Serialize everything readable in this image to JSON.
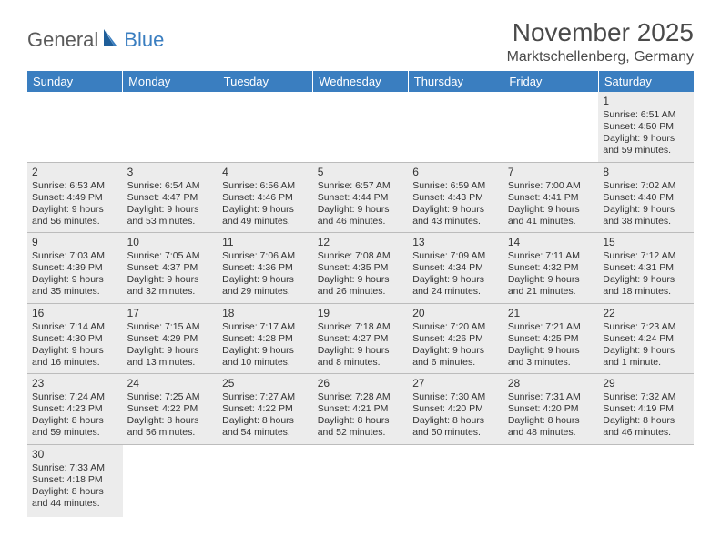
{
  "logo": {
    "text1": "General",
    "text2": "Blue"
  },
  "title": "November 2025",
  "location": "Marktschellenberg, Germany",
  "colors": {
    "header_bg": "#3a7ec0",
    "header_fg": "#ffffff",
    "cell_filled_bg": "#ececec",
    "border": "#bcbcbc",
    "text": "#333333"
  },
  "typography": {
    "title_fontsize": 28,
    "location_fontsize": 16,
    "header_fontsize": 13,
    "cell_fontsize": 10.5
  },
  "weekdays": [
    "Sunday",
    "Monday",
    "Tuesday",
    "Wednesday",
    "Thursday",
    "Friday",
    "Saturday"
  ],
  "weeks": [
    [
      null,
      null,
      null,
      null,
      null,
      null,
      {
        "n": "1",
        "sr": "Sunrise: 6:51 AM",
        "ss": "Sunset: 4:50 PM",
        "d1": "Daylight: 9 hours",
        "d2": "and 59 minutes."
      }
    ],
    [
      {
        "n": "2",
        "sr": "Sunrise: 6:53 AM",
        "ss": "Sunset: 4:49 PM",
        "d1": "Daylight: 9 hours",
        "d2": "and 56 minutes."
      },
      {
        "n": "3",
        "sr": "Sunrise: 6:54 AM",
        "ss": "Sunset: 4:47 PM",
        "d1": "Daylight: 9 hours",
        "d2": "and 53 minutes."
      },
      {
        "n": "4",
        "sr": "Sunrise: 6:56 AM",
        "ss": "Sunset: 4:46 PM",
        "d1": "Daylight: 9 hours",
        "d2": "and 49 minutes."
      },
      {
        "n": "5",
        "sr": "Sunrise: 6:57 AM",
        "ss": "Sunset: 4:44 PM",
        "d1": "Daylight: 9 hours",
        "d2": "and 46 minutes."
      },
      {
        "n": "6",
        "sr": "Sunrise: 6:59 AM",
        "ss": "Sunset: 4:43 PM",
        "d1": "Daylight: 9 hours",
        "d2": "and 43 minutes."
      },
      {
        "n": "7",
        "sr": "Sunrise: 7:00 AM",
        "ss": "Sunset: 4:41 PM",
        "d1": "Daylight: 9 hours",
        "d2": "and 41 minutes."
      },
      {
        "n": "8",
        "sr": "Sunrise: 7:02 AM",
        "ss": "Sunset: 4:40 PM",
        "d1": "Daylight: 9 hours",
        "d2": "and 38 minutes."
      }
    ],
    [
      {
        "n": "9",
        "sr": "Sunrise: 7:03 AM",
        "ss": "Sunset: 4:39 PM",
        "d1": "Daylight: 9 hours",
        "d2": "and 35 minutes."
      },
      {
        "n": "10",
        "sr": "Sunrise: 7:05 AM",
        "ss": "Sunset: 4:37 PM",
        "d1": "Daylight: 9 hours",
        "d2": "and 32 minutes."
      },
      {
        "n": "11",
        "sr": "Sunrise: 7:06 AM",
        "ss": "Sunset: 4:36 PM",
        "d1": "Daylight: 9 hours",
        "d2": "and 29 minutes."
      },
      {
        "n": "12",
        "sr": "Sunrise: 7:08 AM",
        "ss": "Sunset: 4:35 PM",
        "d1": "Daylight: 9 hours",
        "d2": "and 26 minutes."
      },
      {
        "n": "13",
        "sr": "Sunrise: 7:09 AM",
        "ss": "Sunset: 4:34 PM",
        "d1": "Daylight: 9 hours",
        "d2": "and 24 minutes."
      },
      {
        "n": "14",
        "sr": "Sunrise: 7:11 AM",
        "ss": "Sunset: 4:32 PM",
        "d1": "Daylight: 9 hours",
        "d2": "and 21 minutes."
      },
      {
        "n": "15",
        "sr": "Sunrise: 7:12 AM",
        "ss": "Sunset: 4:31 PM",
        "d1": "Daylight: 9 hours",
        "d2": "and 18 minutes."
      }
    ],
    [
      {
        "n": "16",
        "sr": "Sunrise: 7:14 AM",
        "ss": "Sunset: 4:30 PM",
        "d1": "Daylight: 9 hours",
        "d2": "and 16 minutes."
      },
      {
        "n": "17",
        "sr": "Sunrise: 7:15 AM",
        "ss": "Sunset: 4:29 PM",
        "d1": "Daylight: 9 hours",
        "d2": "and 13 minutes."
      },
      {
        "n": "18",
        "sr": "Sunrise: 7:17 AM",
        "ss": "Sunset: 4:28 PM",
        "d1": "Daylight: 9 hours",
        "d2": "and 10 minutes."
      },
      {
        "n": "19",
        "sr": "Sunrise: 7:18 AM",
        "ss": "Sunset: 4:27 PM",
        "d1": "Daylight: 9 hours",
        "d2": "and 8 minutes."
      },
      {
        "n": "20",
        "sr": "Sunrise: 7:20 AM",
        "ss": "Sunset: 4:26 PM",
        "d1": "Daylight: 9 hours",
        "d2": "and 6 minutes."
      },
      {
        "n": "21",
        "sr": "Sunrise: 7:21 AM",
        "ss": "Sunset: 4:25 PM",
        "d1": "Daylight: 9 hours",
        "d2": "and 3 minutes."
      },
      {
        "n": "22",
        "sr": "Sunrise: 7:23 AM",
        "ss": "Sunset: 4:24 PM",
        "d1": "Daylight: 9 hours",
        "d2": "and 1 minute."
      }
    ],
    [
      {
        "n": "23",
        "sr": "Sunrise: 7:24 AM",
        "ss": "Sunset: 4:23 PM",
        "d1": "Daylight: 8 hours",
        "d2": "and 59 minutes."
      },
      {
        "n": "24",
        "sr": "Sunrise: 7:25 AM",
        "ss": "Sunset: 4:22 PM",
        "d1": "Daylight: 8 hours",
        "d2": "and 56 minutes."
      },
      {
        "n": "25",
        "sr": "Sunrise: 7:27 AM",
        "ss": "Sunset: 4:22 PM",
        "d1": "Daylight: 8 hours",
        "d2": "and 54 minutes."
      },
      {
        "n": "26",
        "sr": "Sunrise: 7:28 AM",
        "ss": "Sunset: 4:21 PM",
        "d1": "Daylight: 8 hours",
        "d2": "and 52 minutes."
      },
      {
        "n": "27",
        "sr": "Sunrise: 7:30 AM",
        "ss": "Sunset: 4:20 PM",
        "d1": "Daylight: 8 hours",
        "d2": "and 50 minutes."
      },
      {
        "n": "28",
        "sr": "Sunrise: 7:31 AM",
        "ss": "Sunset: 4:20 PM",
        "d1": "Daylight: 8 hours",
        "d2": "and 48 minutes."
      },
      {
        "n": "29",
        "sr": "Sunrise: 7:32 AM",
        "ss": "Sunset: 4:19 PM",
        "d1": "Daylight: 8 hours",
        "d2": "and 46 minutes."
      }
    ],
    [
      {
        "n": "30",
        "sr": "Sunrise: 7:33 AM",
        "ss": "Sunset: 4:18 PM",
        "d1": "Daylight: 8 hours",
        "d2": "and 44 minutes."
      },
      null,
      null,
      null,
      null,
      null,
      null
    ]
  ]
}
